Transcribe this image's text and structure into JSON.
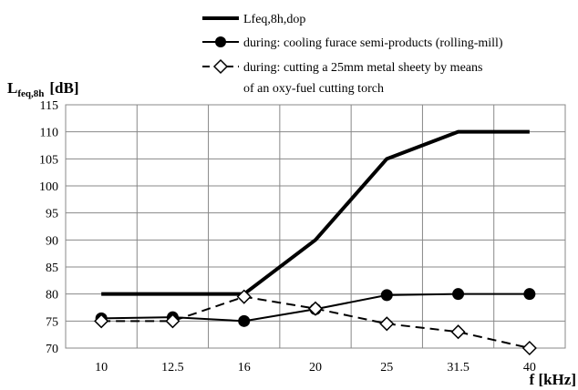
{
  "chart_data": {
    "type": "line",
    "title": "",
    "ylabel_main": "L",
    "ylabel_sub": "feq,8h",
    "ylabel_unit": "[dB]",
    "xlabel": "f [kHz]",
    "categories": [
      "10",
      "12.5",
      "16",
      "20",
      "25",
      "31.5",
      "40"
    ],
    "ylim": [
      70,
      115
    ],
    "yticks": [
      70,
      75,
      80,
      85,
      90,
      95,
      100,
      105,
      110,
      115
    ],
    "grid": true,
    "legend_position": "top",
    "series": [
      {
        "name": "Lfeq,8h,dop",
        "style": "thick-solid",
        "marker": "none",
        "values": [
          80,
          80,
          80,
          90,
          105,
          110,
          110
        ]
      },
      {
        "name": "during: cooling furace semi-products (rolling-mill)",
        "style": "solid",
        "marker": "filled-circle",
        "values": [
          75.5,
          75.7,
          75,
          77.2,
          79.8,
          80,
          80
        ]
      },
      {
        "name_lines": [
          "during: cutting a 25mm metal sheety by means",
          "of an oxy-fuel cutting torch"
        ],
        "style": "dashed",
        "marker": "open-diamond",
        "values": [
          75,
          75,
          79.5,
          77.3,
          74.5,
          73,
          70
        ]
      }
    ],
    "colors": {
      "line": "#000000",
      "grid": "#888888",
      "background": "#ffffff"
    }
  }
}
